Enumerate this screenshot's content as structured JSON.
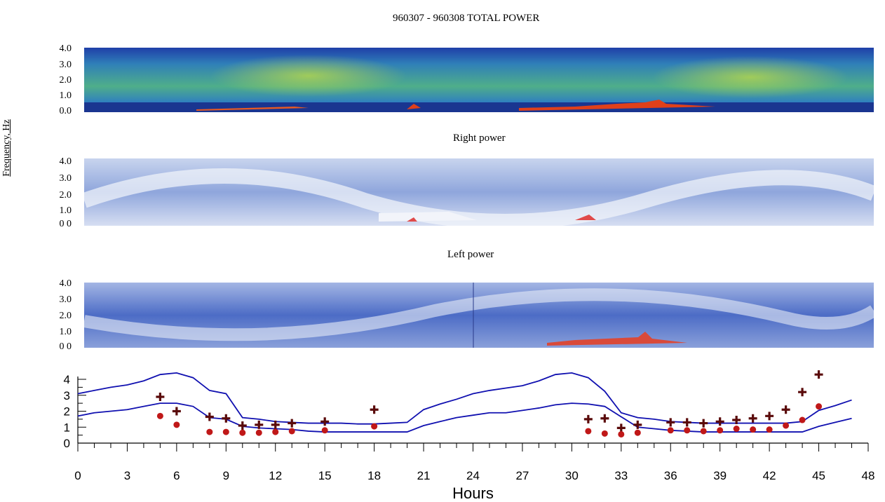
{
  "title": "960307 - 960308 TOTAL POWER",
  "panels": {
    "right_title": "Right power",
    "left_title": "Left power",
    "frequency_label": "Frequency, Hz",
    "freq_ticks_total": [
      "4.0",
      "3.0",
      "2.0",
      "1.0",
      "0.0"
    ],
    "freq_ticks_right": [
      "4.0",
      "3.0",
      "2.0",
      "1.0",
      "0 0"
    ],
    "freq_ticks_left": [
      "4.0",
      "3.0",
      "2.0",
      "1.0",
      "0 0"
    ]
  },
  "colors": {
    "spectrogram_dark": "#1f3fa8",
    "spectrogram_green": "#6fbf5a",
    "spectrogram_red": "#e0401a",
    "line": "#1010b0",
    "plus_marker": "#5a0a0a",
    "dot_marker": "#c01818"
  },
  "chart_data": {
    "type": "line",
    "xlabel": "Hours",
    "ylabel": "",
    "xlim": [
      0,
      48
    ],
    "ylim": [
      0,
      4.5
    ],
    "x_ticks": [
      0,
      3,
      6,
      9,
      12,
      15,
      18,
      21,
      24,
      27,
      30,
      33,
      36,
      39,
      42,
      45,
      48
    ],
    "y_ticks": [
      0,
      1,
      2,
      3,
      4
    ],
    "series": [
      {
        "style": "line",
        "x": [
          0,
          1,
          2,
          3,
          4,
          5,
          6,
          7,
          8,
          9,
          10,
          11,
          12,
          13,
          14,
          15,
          16,
          17,
          18,
          19,
          20,
          21,
          22,
          23,
          24,
          25,
          26,
          27,
          28,
          29,
          30,
          31,
          32,
          33,
          34,
          35,
          36,
          37,
          38,
          39,
          40,
          41,
          42,
          43,
          44,
          45,
          46,
          47
        ],
        "values": [
          3.1,
          3.3,
          3.5,
          3.65,
          3.9,
          4.3,
          4.4,
          4.1,
          3.3,
          3.1,
          1.6,
          1.5,
          1.35,
          1.3,
          1.25,
          1.25,
          1.25,
          1.2,
          1.2,
          1.25,
          1.3,
          2.1,
          2.45,
          2.75,
          3.1,
          3.3,
          3.45,
          3.6,
          3.9,
          4.3,
          4.4,
          4.1,
          3.25,
          1.9,
          1.6,
          1.5,
          1.35,
          1.3,
          1.25,
          1.25,
          1.25,
          1.25,
          1.25,
          1.25,
          1.35,
          2.05,
          2.35,
          2.7
        ]
      },
      {
        "style": "line",
        "x": [
          0,
          1,
          2,
          3,
          4,
          5,
          6,
          7,
          8,
          9,
          10,
          11,
          12,
          13,
          14,
          15,
          16,
          17,
          18,
          19,
          20,
          21,
          22,
          23,
          24,
          25,
          26,
          27,
          28,
          29,
          30,
          31,
          32,
          33,
          34,
          35,
          36,
          37,
          38,
          39,
          40,
          41,
          42,
          43,
          44,
          45,
          46,
          47
        ],
        "values": [
          1.7,
          1.9,
          2.0,
          2.1,
          2.3,
          2.5,
          2.5,
          2.3,
          1.6,
          1.5,
          1.05,
          0.95,
          0.9,
          0.85,
          0.75,
          0.7,
          0.7,
          0.7,
          0.7,
          0.7,
          0.7,
          1.1,
          1.35,
          1.6,
          1.75,
          1.9,
          1.9,
          2.05,
          2.2,
          2.4,
          2.5,
          2.45,
          2.3,
          1.65,
          1.0,
          0.9,
          0.8,
          0.75,
          0.7,
          0.7,
          0.7,
          0.7,
          0.7,
          0.7,
          0.7,
          1.05,
          1.3,
          1.55
        ]
      },
      {
        "style": "plus",
        "x": [
          5,
          6,
          8,
          9,
          10,
          11,
          12,
          13,
          15,
          18,
          31,
          32,
          33,
          34,
          36,
          37,
          38,
          39,
          40,
          41,
          42,
          43,
          44,
          45
        ],
        "values": [
          2.9,
          2.0,
          1.65,
          1.55,
          1.1,
          1.15,
          1.15,
          1.25,
          1.35,
          2.1,
          1.5,
          1.55,
          0.95,
          1.15,
          1.3,
          1.3,
          1.25,
          1.35,
          1.45,
          1.55,
          1.7,
          2.1,
          3.2,
          4.3
        ]
      },
      {
        "style": "dot",
        "x": [
          5,
          6,
          8,
          9,
          10,
          11,
          12,
          13,
          15,
          18,
          31,
          32,
          33,
          34,
          36,
          37,
          38,
          39,
          40,
          41,
          42,
          43,
          44,
          45
        ],
        "values": [
          1.7,
          1.15,
          0.7,
          0.7,
          0.65,
          0.65,
          0.7,
          0.75,
          0.8,
          1.05,
          0.75,
          0.6,
          0.55,
          0.65,
          0.8,
          0.8,
          0.75,
          0.8,
          0.9,
          0.85,
          0.85,
          1.1,
          1.45,
          2.3
        ]
      }
    ]
  }
}
